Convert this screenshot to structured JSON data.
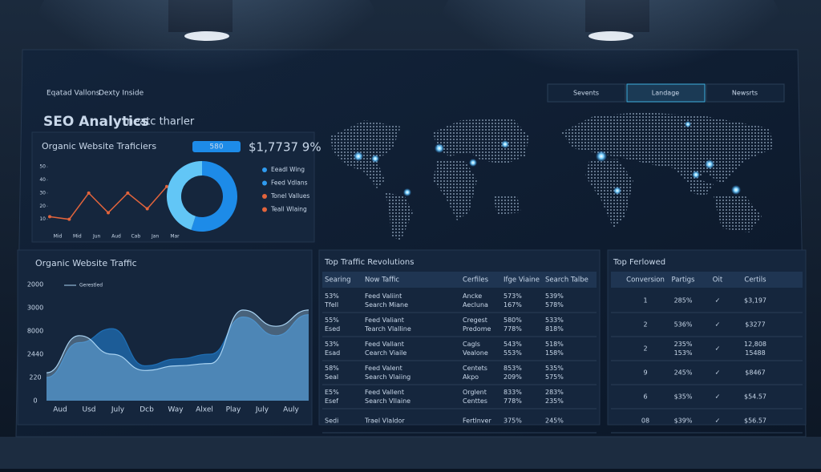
{
  "header": {
    "links": [
      "Eqatad Vallons",
      "Dexty Inside"
    ],
    "title": "SEO Analytics",
    "title_suffix": "neatc tharler"
  },
  "summary": {
    "label": "Organic Website Traficiers",
    "pill": "580",
    "value": "$1,7737 9%"
  },
  "tabs": [
    "Sevents",
    "Landage",
    "Newsrts"
  ],
  "line_chart": {
    "type": "line",
    "categories": [
      "Mid",
      "Mid",
      "Jun",
      "Aud",
      "Cab",
      "Jan",
      "Mar"
    ],
    "values": [
      12,
      10,
      30,
      15,
      30,
      18,
      35
    ],
    "color": "#e2643c",
    "ylim": [
      0,
      55
    ],
    "yticks": [
      10,
      20,
      30,
      40,
      50
    ]
  },
  "donut": {
    "type": "pie",
    "values": [
      55,
      45
    ],
    "colors": [
      "#1d8be8",
      "#62c6f6"
    ]
  },
  "donut_legend": [
    {
      "name": "Eeadl Wing",
      "color": "#2f9bf0"
    },
    {
      "name": "Feed Vdlans",
      "color": "#2f9bf0"
    },
    {
      "name": "Tonel Vallues",
      "color": "#e2643c"
    },
    {
      "name": "Teall Wlaing",
      "color": "#e2643c"
    }
  ],
  "area_chart": {
    "type": "area",
    "title": "Organic Website Traffic",
    "categories": [
      "Aud",
      "Usd",
      "July",
      "Dcb",
      "Way",
      "Alxel",
      "Play",
      "July",
      "Auly"
    ],
    "y_labels": [
      "2000",
      "3000",
      "8000",
      "2440",
      "220",
      "0"
    ],
    "ylim": [
      0,
      5
    ],
    "series": [
      {
        "name": "Gerestled",
        "color": "#a9d3f2",
        "values": [
          1.2,
          2.8,
          2.0,
          1.3,
          1.5,
          1.6,
          3.9,
          3.2,
          3.9
        ]
      },
      {
        "color": "#1f6fb5",
        "values": [
          1.0,
          2.5,
          3.1,
          1.5,
          1.8,
          2.0,
          3.6,
          2.8,
          3.7
        ]
      }
    ]
  },
  "tables": [
    {
      "title": "Top Traffic Revolutions",
      "headers": [
        "Searing",
        "Now Taffic",
        "Cerfiles",
        "Ifge Viaine",
        "Search Talbe"
      ],
      "rows": [
        [
          [
            "53%",
            "Tfell"
          ],
          [
            "Feed Valiint",
            "Search Miane"
          ],
          [
            "Ancke",
            "Aecluna"
          ],
          [
            "573%",
            "167%"
          ],
          [
            "539%",
            "578%"
          ]
        ],
        [
          [
            "55%",
            "Esed"
          ],
          [
            "Feed Valiant",
            "Tearch Vlalline"
          ],
          [
            "Cregest",
            "Predome"
          ],
          [
            "580%",
            "778%"
          ],
          [
            "533%",
            "818%"
          ]
        ],
        [
          [
            "53%",
            "Esad"
          ],
          [
            "Feed Vallant",
            "Cearch Viaile"
          ],
          [
            "Cagls",
            "Vealone"
          ],
          [
            "543%",
            "553%"
          ],
          [
            "518%",
            "158%"
          ]
        ],
        [
          [
            "58%",
            "Seal"
          ],
          [
            "Feed Valent",
            "Search Vlaiing"
          ],
          [
            "Centets",
            "Akpo"
          ],
          [
            "853%",
            "209%"
          ],
          [
            "535%",
            "575%"
          ]
        ],
        [
          [
            "E5%",
            "Esef"
          ],
          [
            "Feed Vallent",
            "Search Vllaine"
          ],
          [
            "Orglent",
            "Centtes"
          ],
          [
            "833%",
            "778%"
          ],
          [
            "283%",
            "235%"
          ]
        ],
        [
          [
            "Sedi"
          ],
          [
            "Trael Vlaldor"
          ],
          [
            "Fertlnver"
          ],
          [
            "375%"
          ],
          [
            "245%"
          ]
        ]
      ]
    },
    {
      "title": "Top Ferlowed",
      "headers": [
        "Conversion",
        "Partigs",
        "Oit",
        "Certils"
      ],
      "rows": [
        [
          [
            "1"
          ],
          [
            "285%"
          ],
          [
            "✓"
          ],
          [
            "$3,197"
          ]
        ],
        [
          [
            "2"
          ],
          [
            "536%"
          ],
          [
            "✓"
          ],
          [
            "$3277"
          ]
        ],
        [
          [
            "2"
          ],
          [
            "235%",
            "153%"
          ],
          [
            "✓"
          ],
          [
            "12,808",
            "15488"
          ]
        ],
        [
          [
            "9"
          ],
          [
            "245%"
          ],
          [
            "✓"
          ],
          [
            "$8467"
          ]
        ],
        [
          [
            "6"
          ],
          [
            "$35%"
          ],
          [
            "✓"
          ],
          [
            "$54.57"
          ]
        ],
        [
          [
            "08"
          ],
          [
            "$39%"
          ],
          [
            "✓"
          ],
          [
            "$56.57"
          ]
        ]
      ]
    }
  ]
}
